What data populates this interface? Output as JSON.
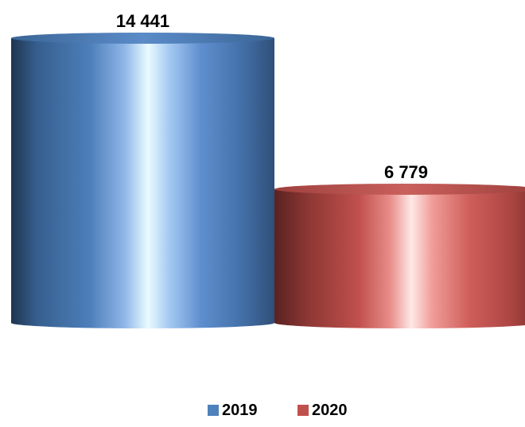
{
  "chart_data": {
    "type": "bar",
    "style": "3d-cylinder",
    "categories": [
      "2019",
      "2020"
    ],
    "values": [
      14441,
      6779
    ],
    "data_labels": [
      "14 441",
      "6 779"
    ],
    "legend": {
      "position": "bottom",
      "entries": [
        "2019",
        "2020"
      ]
    },
    "colors": {
      "2019": "#4f81bd",
      "2020": "#c0504d"
    },
    "grid": false,
    "axes_visible": false,
    "title": "",
    "xlabel": "",
    "ylabel": ""
  }
}
